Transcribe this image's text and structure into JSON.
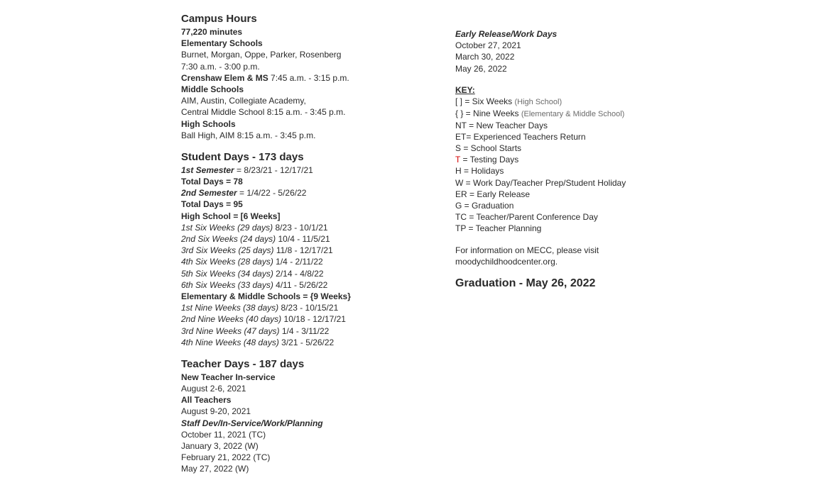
{
  "campusHours": {
    "title": "Campus Hours",
    "minutes": "77,220  minutes",
    "elemLabel": "Elementary Schools",
    "elemList": "Burnet, Morgan, Oppe, Parker, Rosenberg",
    "elemTime": "7:30 a.m. - 3:00 p.m.",
    "crenshawLabel": "Crenshaw Elem & MS",
    "crenshawTime": " 7:45 a.m. - 3:15 p.m.",
    "msLabel": "Middle Schools",
    "msList": "AIM, Austin, Collegiate Academy,",
    "msTime": "Central Middle School 8:15 a.m. - 3:45 p.m.",
    "hsLabel": "High Schools",
    "hsTime": "Ball High, AIM 8:15 a.m. - 3:45 p.m."
  },
  "studentDays": {
    "title": "Student Days - 173 days",
    "sem1Label": "1st Semester",
    "sem1Val": " = 8/23/21 - 12/17/21",
    "total1": "Total Days = 78",
    "sem2Label": "2nd Semester",
    "sem2Val": " = 1/4/22 - 5/26/22",
    "total2": "Total Days = 95",
    "hsLabel": "High School = [6 Weeks]",
    "six1Label": "1st Six Weeks (29 days)",
    "six1Val": " 8/23 - 10/1/21",
    "six2Label": "2nd Six Weeks (24 days)",
    "six2Val": " 10/4 - 11/5/21",
    "six3Label": "3rd Six Weeks (25 days)",
    "six3Val": " 11/8 - 12/17/21",
    "six4Label": "4th Six Weeks (28 days)",
    "six4Val": " 1/4 - 2/11/22",
    "six5Label": "5th Six Weeks (34 days)",
    "six5Val": " 2/14 - 4/8/22",
    "six6Label": "6th Six Weeks (33 days)",
    "six6Val": " 4/11 - 5/26/22",
    "emsLabel": "Elementary & Middle Schools = {9 Weeks}",
    "nine1Label": "1st Nine Weeks (38 days)",
    "nine1Val": " 8/23 - 10/15/21",
    "nine2Label": "2nd Nine Weeks (40 days)",
    "nine2Val": " 10/18 - 12/17/21",
    "nine3Label": "3rd Nine Weeks (47 days)",
    "nine3Val": " 1/4 - 3/11/22",
    "nine4Label": "4th Nine Weeks (48 days)",
    "nine4Val": " 3/21 - 5/26/22"
  },
  "teacherDays": {
    "title": "Teacher Days - 187 days",
    "newLabel": "New Teacher In-service",
    "newVal": "August 2-6, 2021",
    "allLabel": "All Teachers",
    "allVal": "August 9-20, 2021",
    "staffLabel": "Staff Dev/In-Service/Work/Planning",
    "s1": "October 11, 2021 (TC)",
    "s2": "January 3, 2022 (W)",
    "s3": "February 21, 2022 (TC)",
    "s4": "May 27, 2022 (W)"
  },
  "earlyRelease": {
    "title": "Early Release/Work Days",
    "d1": "October 27, 2021",
    "d2": "March 30, 2022",
    "d3": "May 26, 2022"
  },
  "key": {
    "title": "KEY:",
    "l1a": "[ ] = Six Weeks ",
    "l1b": "(High School)",
    "l2a": "{ } = Nine Weeks ",
    "l2b": "(Elementary & Middle School)",
    "l3": "NT = New Teacher Days",
    "l4": "ET= Experienced Teachers Return",
    "l5": "S = School Starts",
    "l6a": "T",
    "l6b": " = Testing Days",
    "l7": "H = Holidays",
    "l8": "W = Work Day/Teacher Prep/Student Holiday",
    "l9": "ER = Early Release",
    "l10": "G = Graduation",
    "l11": "TC = Teacher/Parent Conference Day",
    "l12": "TP = Teacher Planning"
  },
  "mecc1": "For information on MECC, please visit",
  "mecc2": "moodychildhoodcenter.org.",
  "graduation": "Graduation - May 26, 2022"
}
